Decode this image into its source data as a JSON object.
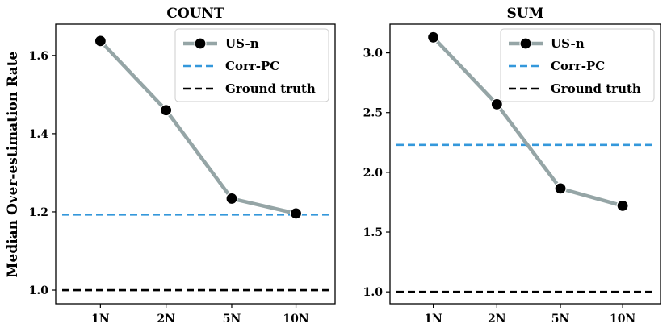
{
  "figure": {
    "ylabel": "Median Over-estimation Rate"
  },
  "colors": {
    "usn": "#95a5a6",
    "corr_pc": "#3498db",
    "ground_truth": "#000000"
  },
  "chart_data": [
    {
      "type": "line",
      "title": "COUNT",
      "categories": [
        "1N",
        "2N",
        "5N",
        "10N"
      ],
      "series": [
        {
          "name": "US-n",
          "style": "solid-marker",
          "values": [
            1.637,
            1.46,
            1.234,
            1.196
          ]
        },
        {
          "name": "Corr-PC",
          "style": "dashed",
          "values": [
            1.193,
            1.193,
            1.193,
            1.193
          ]
        },
        {
          "name": "Ground truth",
          "style": "dashed",
          "values": [
            1.0,
            1.0,
            1.0,
            1.0
          ]
        }
      ],
      "ylim": [
        0.965,
        1.68
      ],
      "yticks": [
        1.0,
        1.2,
        1.4,
        1.6
      ],
      "ytick_labels": [
        "1.0",
        "1.2",
        "1.4",
        "1.6"
      ],
      "legend": "top-right"
    },
    {
      "type": "line",
      "title": "SUM",
      "categories": [
        "1N",
        "2N",
        "5N",
        "10N"
      ],
      "series": [
        {
          "name": "US-n",
          "style": "solid-marker",
          "values": [
            3.13,
            2.57,
            1.865,
            1.72
          ]
        },
        {
          "name": "Corr-PC",
          "style": "dashed",
          "values": [
            2.23,
            2.23,
            2.23,
            2.23
          ]
        },
        {
          "name": "Ground truth",
          "style": "dashed",
          "values": [
            1.0,
            1.0,
            1.0,
            1.0
          ]
        }
      ],
      "ylim": [
        0.9,
        3.24
      ],
      "yticks": [
        1.0,
        1.5,
        2.0,
        2.5,
        3.0
      ],
      "ytick_labels": [
        "1.0",
        "1.5",
        "2.0",
        "2.5",
        "3.0"
      ],
      "legend": "top-right"
    }
  ]
}
